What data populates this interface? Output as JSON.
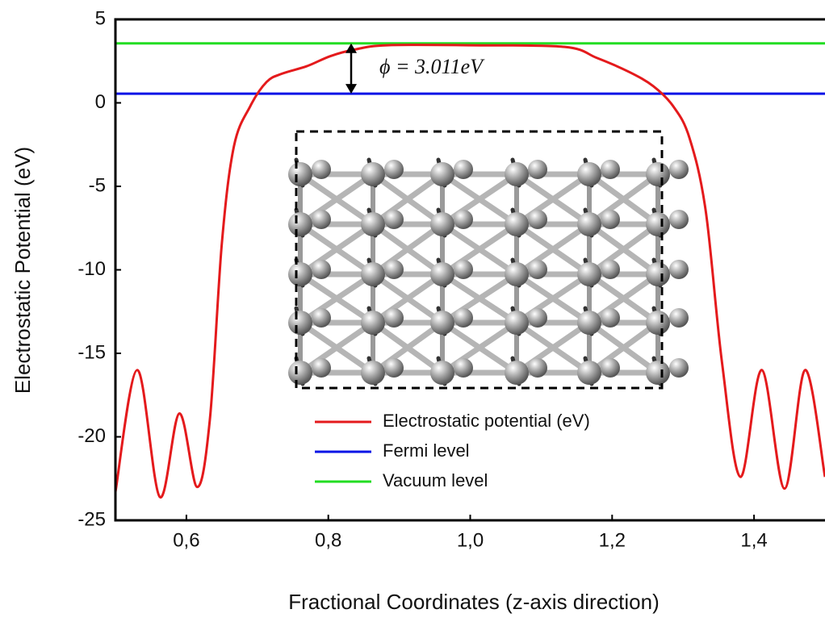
{
  "chart_data": {
    "type": "line",
    "x_label": "Fractional Coordinates (z-axis direction)",
    "y_label": "Electrostatic Potential (eV)",
    "x": [
      0.5,
      0.531,
      0.5625,
      0.59,
      0.615,
      0.633,
      0.65,
      0.667,
      0.69,
      0.713,
      0.735,
      0.77,
      0.803,
      0.838,
      0.883,
      1.0,
      1.133,
      1.178,
      1.224,
      1.258,
      1.286,
      1.309,
      1.332,
      1.355,
      1.381,
      1.411,
      1.443,
      1.472,
      1.5
    ],
    "series": [
      {
        "name": "Electrostatic potential (eV)",
        "color": "#e41a1c",
        "values": [
          -23.3,
          -16.0,
          -23.6,
          -18.6,
          -23.0,
          -19.0,
          -8.4,
          -2.6,
          -0.2,
          1.25,
          1.75,
          2.2,
          2.8,
          3.2,
          3.45,
          3.45,
          3.35,
          2.7,
          1.85,
          1.0,
          -0.2,
          -2.1,
          -6.5,
          -15.6,
          -22.4,
          -16.0,
          -23.1,
          -16.0,
          -22.4
        ]
      }
    ],
    "reference_lines": [
      {
        "name": "Fermi level",
        "color": "#0a14e6",
        "y": 0.55
      },
      {
        "name": "Vacuum level",
        "color": "#22dd22",
        "y": 3.56
      }
    ],
    "annotation": "ϕ = 3.011eV",
    "xlim": [
      0.5,
      1.5
    ],
    "xticks": [
      {
        "value": 0.6,
        "label": "0,6"
      },
      {
        "value": 0.8,
        "label": "0,8"
      },
      {
        "value": 1.0,
        "label": "1,0"
      },
      {
        "value": 1.2,
        "label": "1,2"
      },
      {
        "value": 1.4,
        "label": "1,4"
      }
    ],
    "ylim": [
      -25,
      5
    ],
    "yticks": [
      -25,
      -20,
      -15,
      -10,
      -5,
      0,
      5
    ],
    "grid": false,
    "legend": "lower center"
  }
}
